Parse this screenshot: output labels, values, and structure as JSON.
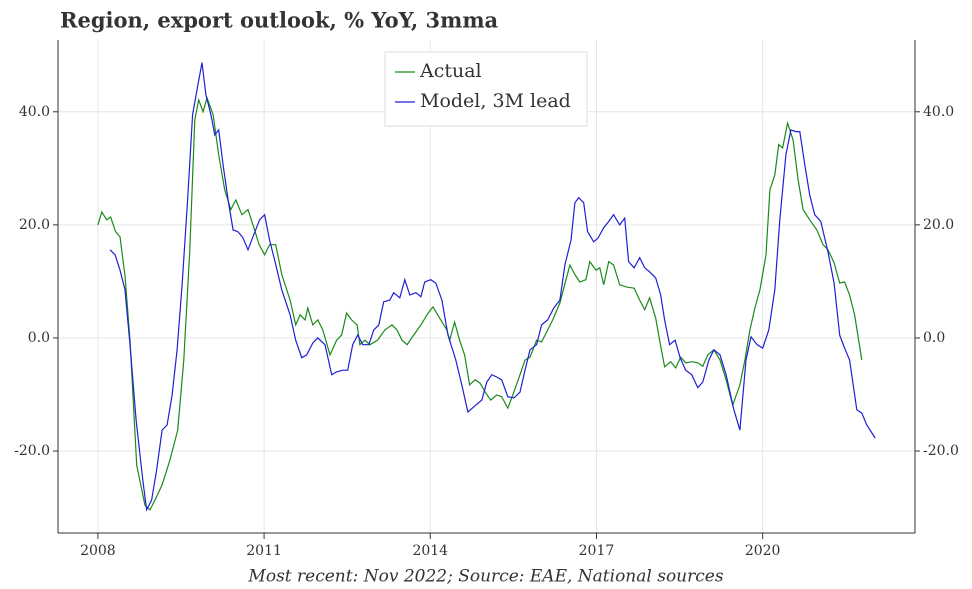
{
  "chart_data": {
    "type": "line",
    "title": "Region, export outlook, % YoY, 3mma",
    "footnote": "Most recent: Nov 2022; Source: EAE, National sources",
    "xlim": [
      2007.28,
      2022.75
    ],
    "xticks": [
      2008,
      2011,
      2014,
      2017,
      2020
    ],
    "ylim": [
      -34.5,
      52.7
    ],
    "yticks": [
      {
        "value": 40,
        "label": "40.0"
      },
      {
        "value": 20,
        "label": "20.0"
      },
      {
        "value": 0,
        "label": "0.0"
      },
      {
        "value": -20,
        "label": "-20.0"
      }
    ],
    "grid": true,
    "legend": "upper center",
    "series": [
      {
        "name": "Actual",
        "color": "#1a8a1a",
        "x": [
          2008.0,
          2008.07,
          2008.16,
          2008.23,
          2008.32,
          2008.4,
          2008.49,
          2008.58,
          2008.7,
          2008.85,
          2008.94,
          2009.03,
          2009.16,
          2009.3,
          2009.44,
          2009.55,
          2009.66,
          2009.75,
          2009.82,
          2009.9,
          2009.97,
          2010.08,
          2010.18,
          2010.29,
          2010.4,
          2010.49,
          2010.6,
          2010.71,
          2010.8,
          2010.91,
          2011.01,
          2011.1,
          2011.21,
          2011.32,
          2011.47,
          2011.57,
          2011.65,
          2011.74,
          2011.79,
          2011.88,
          2011.97,
          2012.06,
          2012.19,
          2012.31,
          2012.4,
          2012.49,
          2012.58,
          2012.68,
          2012.73,
          2012.82,
          2012.91,
          2013.05,
          2013.18,
          2013.31,
          2013.4,
          2013.49,
          2013.58,
          2013.7,
          2013.83,
          2013.96,
          2014.05,
          2014.17,
          2014.3,
          2014.35,
          2014.44,
          2014.53,
          2014.62,
          2014.71,
          2014.81,
          2014.9,
          2015.0,
          2015.09,
          2015.2,
          2015.29,
          2015.4,
          2015.49,
          2015.62,
          2015.71,
          2015.8,
          2015.92,
          2016.01,
          2016.12,
          2016.21,
          2016.34,
          2016.45,
          2016.52,
          2016.61,
          2016.7,
          2016.81,
          2016.88,
          2016.99,
          2017.06,
          2017.13,
          2017.22,
          2017.31,
          2017.42,
          2017.55,
          2017.68,
          2017.78,
          2017.87,
          2017.96,
          2018.07,
          2018.14,
          2018.23,
          2018.34,
          2018.43,
          2018.52,
          2018.61,
          2018.72,
          2018.83,
          2018.92,
          2019.01,
          2019.12,
          2019.23,
          2019.34,
          2019.46,
          2019.59,
          2019.68,
          2019.77,
          2019.86,
          2019.95,
          2020.06,
          2020.13,
          2020.22,
          2020.29,
          2020.36,
          2020.45,
          2020.55,
          2020.64,
          2020.73,
          2020.85,
          2020.98,
          2021.09,
          2021.18,
          2021.29,
          2021.39,
          2021.48,
          2021.57,
          2021.66,
          2021.79
        ],
        "values": [
          20,
          22.3,
          20.9,
          21.4,
          18.8,
          17.9,
          11,
          -0.4,
          -22.5,
          -29.6,
          -30.4,
          -28.7,
          -26,
          -21.6,
          -16.3,
          -3.9,
          15.6,
          38.6,
          42.1,
          40,
          42.5,
          39.5,
          32.4,
          26.2,
          22.7,
          24.4,
          21.8,
          22.7,
          20,
          16.5,
          14.7,
          16.5,
          16.5,
          11.2,
          6.7,
          2.3,
          4.1,
          3.2,
          5.3,
          2.3,
          3.2,
          1.4,
          -3,
          -0.4,
          0.5,
          4.4,
          3.2,
          2.3,
          -1.2,
          -0.4,
          -1.2,
          -0.4,
          1.4,
          2.3,
          1.4,
          -0.4,
          -1.2,
          0.5,
          2.3,
          4.4,
          5.5,
          3.5,
          1.4,
          -0.4,
          2.8,
          -0.4,
          -3,
          -8.3,
          -7.4,
          -8,
          -9.7,
          -11,
          -10.1,
          -10.4,
          -12.4,
          -10.1,
          -6.5,
          -3.9,
          -3.4,
          -0.4,
          -0.7,
          1.4,
          3.2,
          6.2,
          10.3,
          12.9,
          11.2,
          9.9,
          10.3,
          13.5,
          12,
          12.4,
          9.4,
          13.5,
          12.9,
          9.4,
          9,
          8.8,
          6.7,
          5,
          7.1,
          3.5,
          -0.4,
          -5.1,
          -4.2,
          -5.3,
          -3.4,
          -4.4,
          -4.2,
          -4.4,
          -5,
          -3,
          -2.1,
          -3.9,
          -7.4,
          -11.9,
          -8.3,
          -3.9,
          1.4,
          5.3,
          8.5,
          14.7,
          26.2,
          28.8,
          34.2,
          33.6,
          38,
          35,
          28,
          22.7,
          20.9,
          19.1,
          16.5,
          15.6,
          13.3,
          9.7,
          9.9,
          7.6,
          4.1,
          -3.9
        ]
      },
      {
        "name": "Model, 3M lead",
        "color": "#1f1fd6",
        "x": [
          2008.22,
          2008.31,
          2008.4,
          2008.49,
          2008.58,
          2008.69,
          2008.81,
          2008.88,
          2008.97,
          2009.06,
          2009.16,
          2009.25,
          2009.34,
          2009.43,
          2009.52,
          2009.62,
          2009.71,
          2009.79,
          2009.88,
          2009.95,
          2010.04,
          2010.11,
          2010.18,
          2010.26,
          2010.35,
          2010.44,
          2010.53,
          2010.62,
          2010.71,
          2010.8,
          2010.92,
          2011.01,
          2011.1,
          2011.19,
          2011.32,
          2011.47,
          2011.57,
          2011.68,
          2011.77,
          2011.88,
          2011.97,
          2012.1,
          2012.22,
          2012.31,
          2012.42,
          2012.51,
          2012.6,
          2012.69,
          2012.78,
          2012.89,
          2012.98,
          2013.07,
          2013.16,
          2013.27,
          2013.34,
          2013.45,
          2013.54,
          2013.63,
          2013.74,
          2013.83,
          2013.9,
          2014.01,
          2014.1,
          2014.21,
          2014.32,
          2014.46,
          2014.57,
          2014.68,
          2014.82,
          2014.93,
          2015.02,
          2015.11,
          2015.2,
          2015.29,
          2015.4,
          2015.51,
          2015.62,
          2015.71,
          2015.8,
          2015.92,
          2016.01,
          2016.12,
          2016.23,
          2016.34,
          2016.43,
          2016.54,
          2016.61,
          2016.68,
          2016.77,
          2016.84,
          2016.95,
          2017.03,
          2017.13,
          2017.22,
          2017.31,
          2017.42,
          2017.51,
          2017.58,
          2017.68,
          2017.78,
          2017.87,
          2017.96,
          2018.07,
          2018.16,
          2018.23,
          2018.32,
          2018.42,
          2018.51,
          2018.61,
          2018.72,
          2018.83,
          2018.92,
          2019.03,
          2019.12,
          2019.23,
          2019.34,
          2019.48,
          2019.59,
          2019.7,
          2019.79,
          2019.9,
          2020.0,
          2020.11,
          2020.22,
          2020.31,
          2020.42,
          2020.51,
          2020.6,
          2020.67,
          2020.76,
          2020.85,
          2020.94,
          2021.05,
          2021.18,
          2021.29,
          2021.39,
          2021.48,
          2021.57,
          2021.7,
          2021.79,
          2021.88,
          2022.03
        ],
        "values": [
          15.6,
          14.7,
          12,
          8.5,
          -1.2,
          -14.5,
          -25.1,
          -30.4,
          -28.7,
          -23.4,
          -16.3,
          -15.4,
          -10.1,
          -2.1,
          9.4,
          24.4,
          39.5,
          43.9,
          48.7,
          43,
          39.5,
          35.9,
          36.8,
          30.6,
          24.4,
          19.1,
          18.8,
          17.7,
          15.6,
          17.9,
          20.9,
          21.8,
          17.3,
          13.8,
          8.5,
          4.1,
          -0.4,
          -3.5,
          -3,
          -0.9,
          0,
          -1.2,
          -6.5,
          -6,
          -5.7,
          -5.7,
          -1.2,
          0.5,
          -1.2,
          -1.2,
          1.4,
          2.3,
          6.4,
          6.7,
          8,
          7.1,
          10.3,
          7.6,
          8,
          7.3,
          9.9,
          10.3,
          9.7,
          6.7,
          0.5,
          -3.9,
          -8.3,
          -13.1,
          -11.9,
          -11,
          -7.8,
          -6.5,
          -6.9,
          -7.4,
          -10.4,
          -10.6,
          -9.6,
          -5.7,
          -2.1,
          -1.2,
          2.3,
          3.2,
          5.3,
          6.7,
          12.9,
          17.3,
          23.9,
          24.8,
          23.9,
          18.8,
          17,
          17.7,
          19.5,
          20.6,
          21.8,
          20,
          21.2,
          13.5,
          12.4,
          14.2,
          12.4,
          11.7,
          10.6,
          7.6,
          3.2,
          -1.2,
          -0.4,
          -3.5,
          -5.7,
          -6.5,
          -8.8,
          -7.8,
          -3.9,
          -2.1,
          -3,
          -6.5,
          -12.7,
          -16.3,
          -3.9,
          0.2,
          -1.2,
          -1.8,
          1.4,
          8.5,
          20.9,
          32.4,
          36.8,
          36.5,
          36.5,
          30.6,
          25.3,
          21.8,
          20.6,
          15.2,
          9.7,
          0.5,
          -1.8,
          -3.9,
          -12.7,
          -13.3,
          -15.4,
          -17.7
        ]
      }
    ]
  }
}
